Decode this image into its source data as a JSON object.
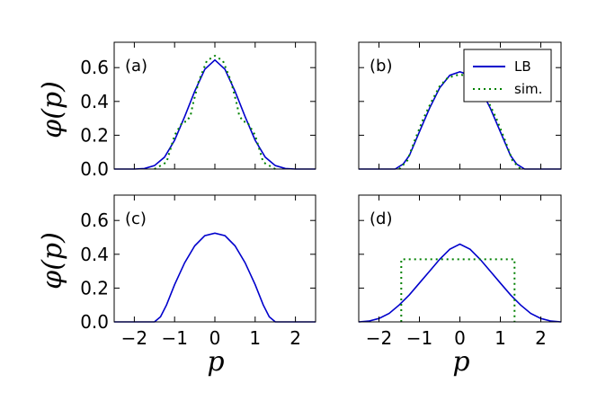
{
  "figure": {
    "ylabel": "φ(p)",
    "xlabel": "p"
  },
  "legend": {
    "entries": [
      {
        "label": "LB",
        "color": "#0000cc",
        "style": "solid"
      },
      {
        "label": "sim.",
        "color": "#008000",
        "style": "dotted"
      }
    ],
    "placement": "top-right of panel (b)"
  },
  "colors": {
    "lb": "#0000cc",
    "sim": "#008000"
  },
  "chart_data": [
    {
      "type": "line",
      "panel": "(a)",
      "xlim": [
        -2.5,
        2.5
      ],
      "ylim": [
        0.0,
        0.75
      ],
      "xticks": [
        -2,
        -1,
        0,
        1,
        2
      ],
      "yticks": [
        "0.0",
        "0.2",
        "0.4",
        "0.6"
      ],
      "show_xtick_labels": false,
      "show_ytick_labels": true,
      "series": [
        {
          "name": "LB",
          "x": [
            -2.5,
            -2.0,
            -1.75,
            -1.5,
            -1.25,
            -1.0,
            -0.75,
            -0.5,
            -0.25,
            0.0,
            0.25,
            0.5,
            0.75,
            1.0,
            1.25,
            1.5,
            1.75,
            2.0,
            2.5
          ],
          "y": [
            0.0,
            0.0,
            0.003,
            0.02,
            0.07,
            0.17,
            0.31,
            0.46,
            0.59,
            0.645,
            0.59,
            0.46,
            0.31,
            0.17,
            0.07,
            0.02,
            0.003,
            0.0,
            0.0
          ]
        },
        {
          "name": "sim.",
          "x": [
            -1.5,
            -1.2,
            -1.0,
            -0.8,
            -0.7,
            -0.6,
            -0.55,
            -0.4,
            -0.2,
            0.0,
            0.2,
            0.4,
            0.55,
            0.6,
            0.7,
            0.8,
            1.0,
            1.2,
            1.5
          ],
          "y": [
            0.0,
            0.04,
            0.2,
            0.28,
            0.28,
            0.32,
            0.38,
            0.52,
            0.64,
            0.67,
            0.64,
            0.52,
            0.38,
            0.32,
            0.28,
            0.28,
            0.2,
            0.04,
            0.0
          ]
        }
      ]
    },
    {
      "type": "line",
      "panel": "(b)",
      "xlim": [
        -2.5,
        2.5
      ],
      "ylim": [
        0.0,
        0.75
      ],
      "xticks": [
        -2,
        -1,
        0,
        1,
        2
      ],
      "yticks": [
        "0.0",
        "0.2",
        "0.4",
        "0.6"
      ],
      "show_xtick_labels": false,
      "show_ytick_labels": false,
      "series": [
        {
          "name": "LB",
          "x": [
            -2.5,
            -1.6,
            -1.4,
            -1.25,
            -1.0,
            -0.75,
            -0.5,
            -0.25,
            0.0,
            0.25,
            0.5,
            0.75,
            1.0,
            1.25,
            1.4,
            1.6,
            2.5
          ],
          "y": [
            0.0,
            0.0,
            0.03,
            0.08,
            0.22,
            0.36,
            0.48,
            0.555,
            0.575,
            0.555,
            0.48,
            0.36,
            0.22,
            0.08,
            0.03,
            0.0,
            0.0
          ]
        },
        {
          "name": "sim.",
          "x": [
            -1.5,
            -1.3,
            -1.1,
            -0.9,
            -0.7,
            -0.5,
            -0.3,
            0.0,
            0.3,
            0.5,
            0.7,
            0.9,
            1.1,
            1.3,
            1.5
          ],
          "y": [
            0.0,
            0.05,
            0.18,
            0.3,
            0.4,
            0.49,
            0.54,
            0.56,
            0.54,
            0.49,
            0.4,
            0.3,
            0.18,
            0.05,
            0.0
          ]
        }
      ]
    },
    {
      "type": "line",
      "panel": "(c)",
      "xlim": [
        -2.5,
        2.5
      ],
      "ylim": [
        0.0,
        0.75
      ],
      "xticks": [
        -2,
        -1,
        0,
        1,
        2
      ],
      "yticks": [
        "0.0",
        "0.2",
        "0.4",
        "0.6"
      ],
      "show_xtick_labels": true,
      "show_ytick_labels": true,
      "series": [
        {
          "name": "LB",
          "x": [
            -2.5,
            -1.5,
            -1.35,
            -1.2,
            -1.0,
            -0.75,
            -0.5,
            -0.25,
            0.0,
            0.25,
            0.5,
            0.75,
            1.0,
            1.2,
            1.35,
            1.5,
            2.5
          ],
          "y": [
            0.0,
            0.0,
            0.03,
            0.1,
            0.22,
            0.35,
            0.45,
            0.51,
            0.525,
            0.51,
            0.45,
            0.35,
            0.22,
            0.1,
            0.03,
            0.0,
            0.0
          ]
        }
      ]
    },
    {
      "type": "line",
      "panel": "(d)",
      "xlim": [
        -2.5,
        2.5
      ],
      "ylim": [
        0.0,
        0.75
      ],
      "xticks": [
        -2,
        -1,
        0,
        1,
        2
      ],
      "yticks": [
        "0.0",
        "0.2",
        "0.4",
        "0.6"
      ],
      "show_xtick_labels": true,
      "show_ytick_labels": false,
      "series": [
        {
          "name": "LB",
          "x": [
            -2.5,
            -2.25,
            -2.0,
            -1.75,
            -1.5,
            -1.25,
            -1.0,
            -0.75,
            -0.5,
            -0.25,
            0.0,
            0.25,
            0.5,
            0.75,
            1.0,
            1.25,
            1.5,
            1.75,
            2.0,
            2.25,
            2.5
          ],
          "y": [
            0.0,
            0.005,
            0.02,
            0.05,
            0.1,
            0.16,
            0.23,
            0.3,
            0.37,
            0.43,
            0.46,
            0.43,
            0.37,
            0.3,
            0.23,
            0.16,
            0.1,
            0.05,
            0.02,
            0.005,
            0.0
          ]
        },
        {
          "name": "sim.",
          "x": [
            -1.45,
            -1.45,
            1.35,
            1.35
          ],
          "y": [
            0.0,
            0.37,
            0.37,
            0.0
          ]
        }
      ]
    }
  ]
}
